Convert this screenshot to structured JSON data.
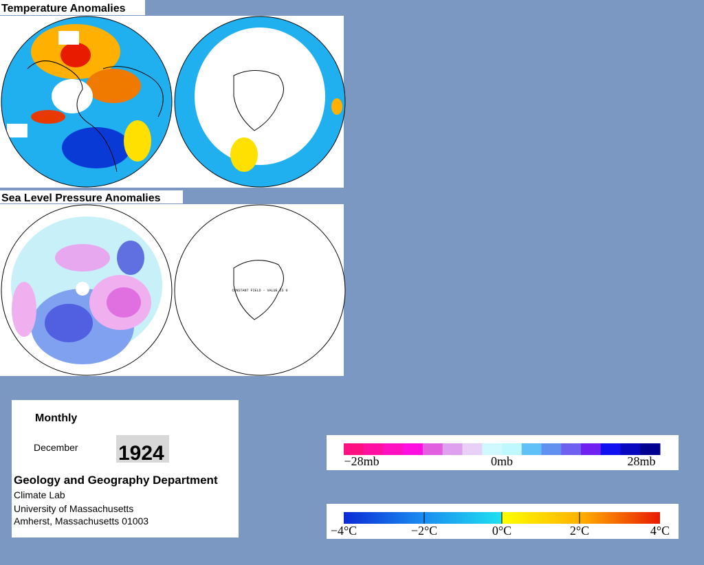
{
  "temperature_panel": {
    "title": "Temperature Anomalies"
  },
  "pressure_panel": {
    "title": "Sea Level Pressure Anomalies",
    "note": "CONSTANT FIELD - VALUE IS 0"
  },
  "info": {
    "period": "Monthly",
    "month": "December",
    "year": "1924",
    "department": "Geology and Geography Department",
    "lines": [
      "Climate Lab",
      "University of Massachusetts",
      "Amherst, Massachusetts 01003"
    ]
  },
  "pressure_scale": {
    "labels": [
      "−28mb",
      "0mb",
      "28mb"
    ]
  },
  "temperature_scale": {
    "labels": [
      "−4°C",
      "−2°C",
      "0°C",
      "2°C",
      "4°C"
    ]
  }
}
